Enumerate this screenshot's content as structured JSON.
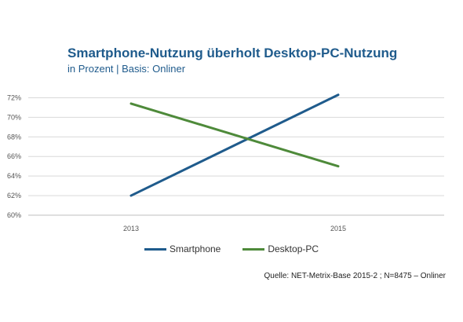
{
  "chart_data": {
    "type": "line",
    "title": "Smartphone-Nutzung überholt Desktop-PC-Nutzung",
    "subtitle": "in Prozent | Basis: Onliner",
    "x": [
      "2013",
      "2015"
    ],
    "y_ticks": [
      "60%",
      "62%",
      "64%",
      "66%",
      "68%",
      "70%",
      "72%"
    ],
    "ylim": [
      60,
      73
    ],
    "grid": true,
    "legend_position": "bottom",
    "series": [
      {
        "name": "Smartphone",
        "values": [
          62,
          72.3
        ],
        "color": "#1f5b8c"
      },
      {
        "name": "Desktop-PC",
        "values": [
          71.4,
          65
        ],
        "color": "#4e8a3a"
      }
    ],
    "source": "Quelle: NET-Metrix-Base 2015-2 ; N=8475 – Onliner"
  }
}
